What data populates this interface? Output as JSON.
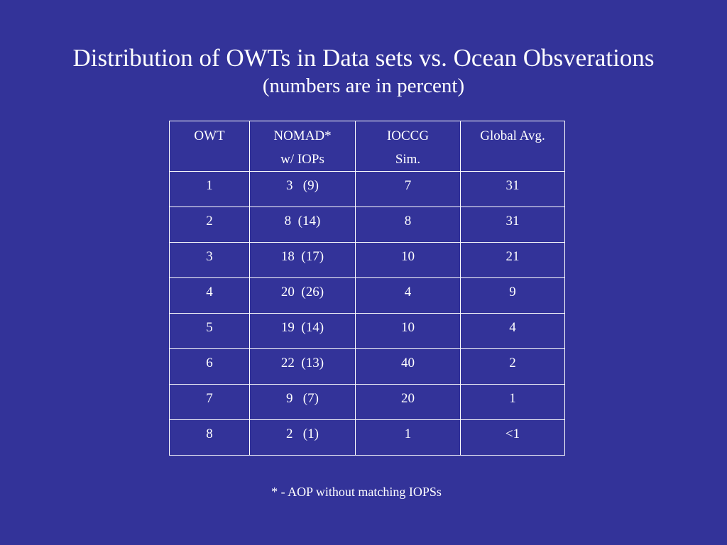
{
  "slide": {
    "title": "Distribution of OWTs in Data sets vs. Ocean Obsverations",
    "subtitle": "(numbers are in percent)",
    "footnote": "* - AOP without matching IOPSs",
    "colors": {
      "background": "#333399",
      "text": "#ffffff",
      "table_border": "#ffffff"
    }
  },
  "table": {
    "headers": [
      [
        "OWT"
      ],
      [
        "NOMAD*",
        "w/ IOPs"
      ],
      [
        "IOCCG",
        "Sim."
      ],
      [
        "Global Avg."
      ]
    ],
    "rows": [
      [
        "1",
        "3   (9)",
        "7",
        "31"
      ],
      [
        "2",
        "8  (14)",
        "8",
        "31"
      ],
      [
        "3",
        "18  (17)",
        "10",
        "21"
      ],
      [
        "4",
        "20  (26)",
        "4",
        "9"
      ],
      [
        "5",
        "19  (14)",
        "10",
        "4"
      ],
      [
        "6",
        "22  (13)",
        "40",
        "2"
      ],
      [
        "7",
        "9   (7)",
        "20",
        "1"
      ],
      [
        "8",
        "2   (1)",
        "1",
        "<1"
      ]
    ]
  }
}
